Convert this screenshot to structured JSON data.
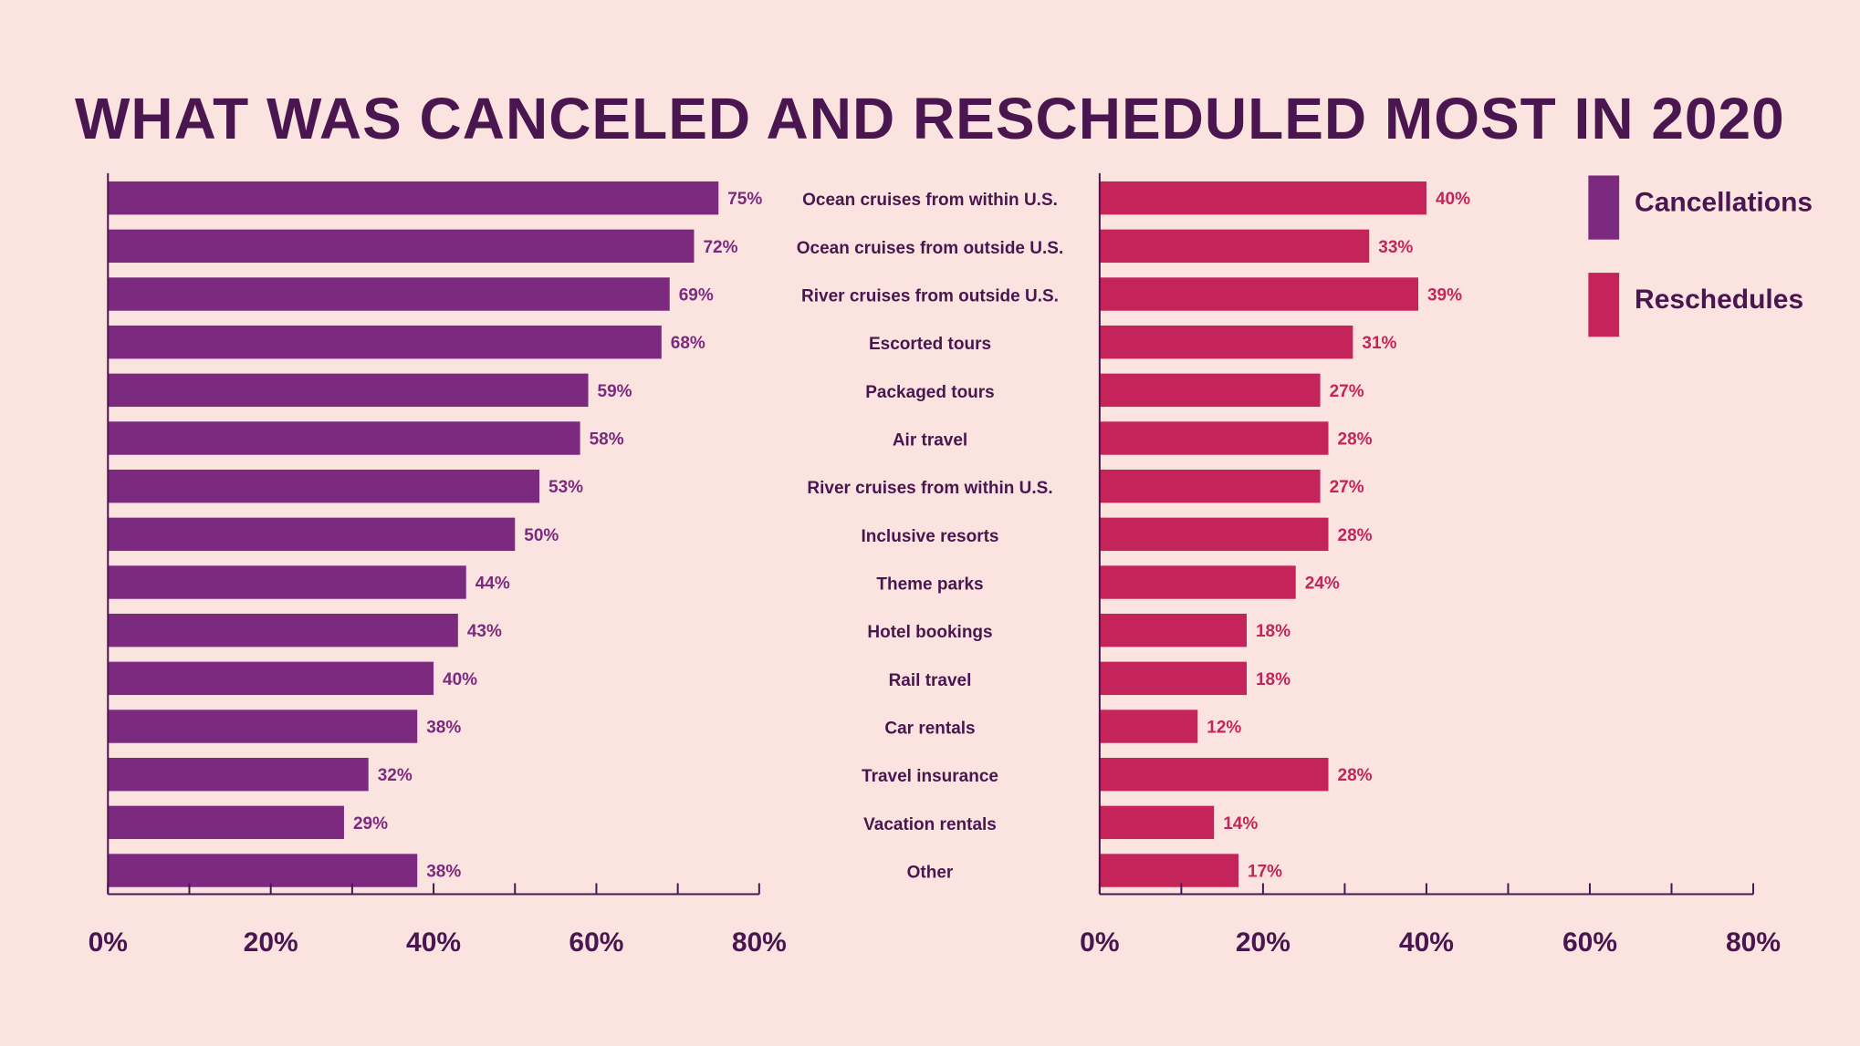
{
  "chart_data": {
    "type": "bar",
    "orientation": "horizontal",
    "title": "WHAT WAS CANCELED AND RESCHEDULED MOST IN 2020",
    "categories": [
      "Ocean cruises from within U.S.",
      "Ocean cruises from outside U.S.",
      "River cruises from outside U.S.",
      "Escorted tours",
      "Packaged tours",
      "Air travel",
      "River cruises from within U.S.",
      "Inclusive resorts",
      "Theme parks",
      "Hotel bookings",
      "Rail travel",
      "Car rentals",
      "Travel insurance",
      "Vacation rentals",
      "Other"
    ],
    "series": [
      {
        "name": "Cancellations",
        "color": "#7b2a7f",
        "values": [
          75,
          72,
          69,
          68,
          59,
          58,
          53,
          50,
          44,
          43,
          40,
          38,
          32,
          29,
          38
        ],
        "labels": [
          "75%",
          "72%",
          "69%",
          "68%",
          "59%",
          "58%",
          "53%",
          "50%",
          "44%",
          "43%",
          "40%",
          "38%",
          "32%",
          "29%",
          "38%"
        ]
      },
      {
        "name": "Reschedules",
        "color": "#c4245a",
        "values": [
          40,
          33,
          39,
          31,
          27,
          28,
          27,
          28,
          24,
          18,
          18,
          12,
          28,
          14,
          17
        ],
        "labels": [
          "40%",
          "33%",
          "39%",
          "31%",
          "27%",
          "28%",
          "27%",
          "28%",
          "24%",
          "18%",
          "18%",
          "12%",
          "28%",
          "14%",
          "17%"
        ]
      }
    ],
    "xlim": [
      0,
      80
    ],
    "xticks": [
      "0%",
      "20%",
      "40%",
      "60%",
      "80%"
    ],
    "grid": false,
    "legend_position": "top-right",
    "colors": {
      "background": "#fbe4df",
      "text": "#4a1650",
      "axis": "#4a1650"
    }
  }
}
